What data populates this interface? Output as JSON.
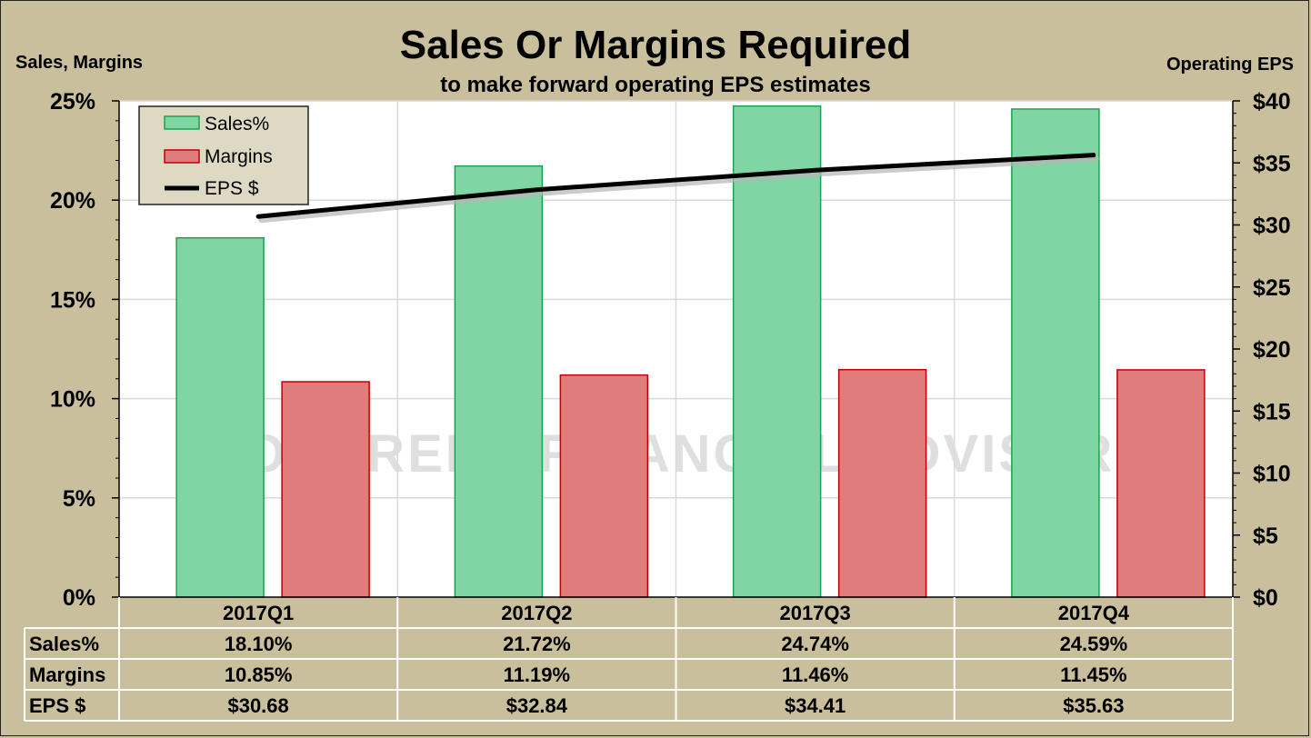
{
  "chart_data": {
    "type": "bar",
    "title": "Sales Or Margins Required",
    "subtitle": "to make forward operating EPS estimates",
    "ylabel_left": "Sales, Margins",
    "ylabel_right": "Operating EPS",
    "categories": [
      "2017Q1",
      "2017Q2",
      "2017Q3",
      "2017Q4"
    ],
    "series": [
      {
        "name": "Sales%",
        "kind": "bar",
        "axis": "left",
        "color": "#7fd6a4",
        "stroke": "#1aa34a",
        "values": [
          18.1,
          21.72,
          24.74,
          24.59
        ],
        "labels": [
          "18.10%",
          "21.72%",
          "24.74%",
          "24.59%"
        ]
      },
      {
        "name": "Margins",
        "kind": "bar",
        "axis": "left",
        "color": "#e07c7c",
        "stroke": "#c00000",
        "values": [
          10.85,
          11.19,
          11.46,
          11.45
        ],
        "labels": [
          "10.85%",
          "11.19%",
          "11.46%",
          "11.45%"
        ]
      },
      {
        "name": "EPS $",
        "kind": "line",
        "axis": "right",
        "color": "#000000",
        "values": [
          30.68,
          32.84,
          34.41,
          35.63
        ],
        "labels": [
          "$30.68",
          "$32.84",
          "$34.41",
          "$35.63"
        ]
      }
    ],
    "ylim_left": [
      0,
      25
    ],
    "ylim_right": [
      0,
      40
    ],
    "yticks_left": [
      0,
      5,
      10,
      15,
      20,
      25
    ],
    "ytick_labels_left": [
      "0%",
      "5%",
      "10%",
      "15%",
      "20%",
      "25%"
    ],
    "yticks_right": [
      0,
      5,
      10,
      15,
      20,
      25,
      30,
      35,
      40
    ],
    "ytick_labels_right": [
      "$0",
      "$5",
      "$10",
      "$15",
      "$20",
      "$25",
      "$30",
      "$35",
      "$40"
    ],
    "grid": true,
    "legend_position": "top-left",
    "data_table": true,
    "watermark": "COHERENT FINANCIAL ADVISERS"
  },
  "colors": {
    "background": "#c9bf9c",
    "plot_area": "#ffffff",
    "gridline": "#d9d9d9",
    "legend_bg": "#ddd9c3",
    "watermark": "#dcdcdc"
  }
}
